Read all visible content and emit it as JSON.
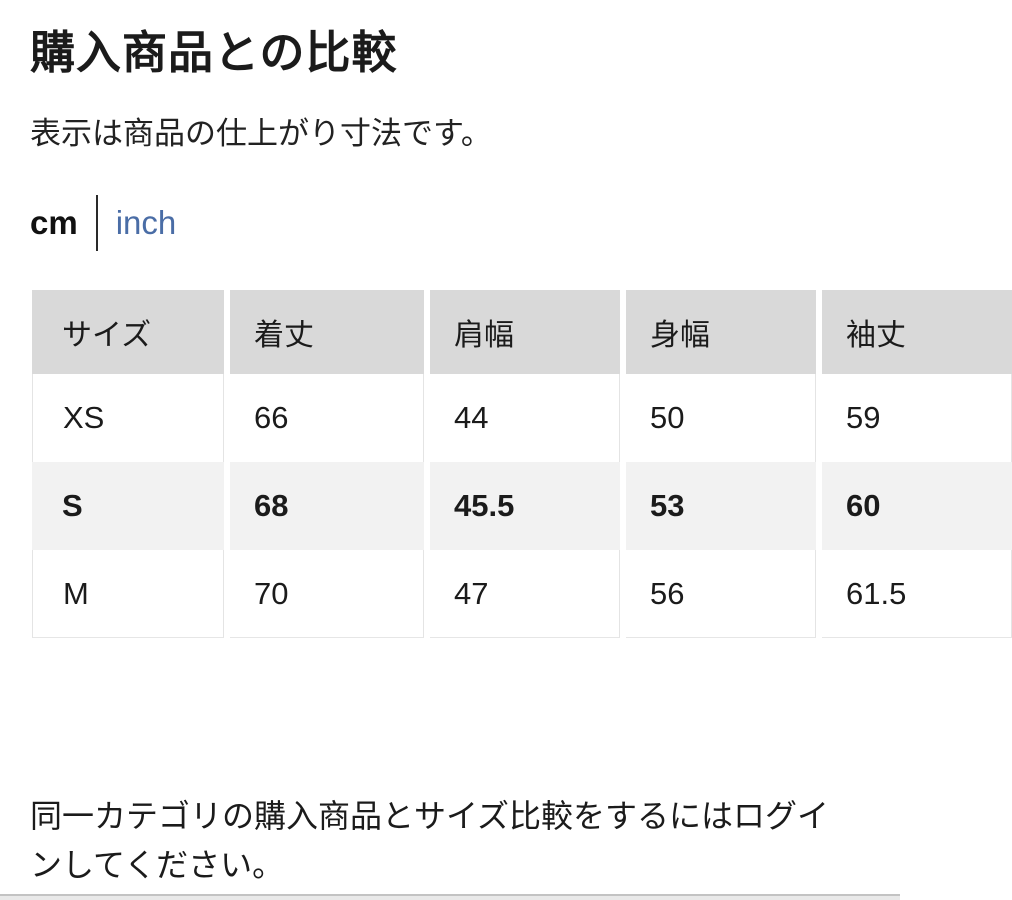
{
  "page": {
    "title": "購入商品との比較",
    "subtitle": "表示は商品の仕上がり寸法です。",
    "footer_note": "同一カテゴリの購入商品とサイズ比較をするにはログインしてください。"
  },
  "unit_toggle": {
    "cm_label": "cm",
    "inch_label": "inch",
    "selected_unit": "cm"
  },
  "size_table": {
    "columns": [
      "サイズ",
      "着丈",
      "肩幅",
      "身幅",
      "袖丈"
    ],
    "rows": [
      {
        "size": "XS",
        "values": [
          "66",
          "44",
          "50",
          "59"
        ],
        "highlighted": false
      },
      {
        "size": "S",
        "values": [
          "68",
          "45.5",
          "53",
          "60"
        ],
        "highlighted": true
      },
      {
        "size": "M",
        "values": [
          "70",
          "47",
          "56",
          "61.5"
        ],
        "highlighted": false
      }
    ]
  },
  "colors": {
    "accent_link_blue": "#4a6da6",
    "table_header_bg": "#d9d9d9",
    "highlight_row_bg": "#f2f2f2",
    "text": "#1b1b1b"
  }
}
